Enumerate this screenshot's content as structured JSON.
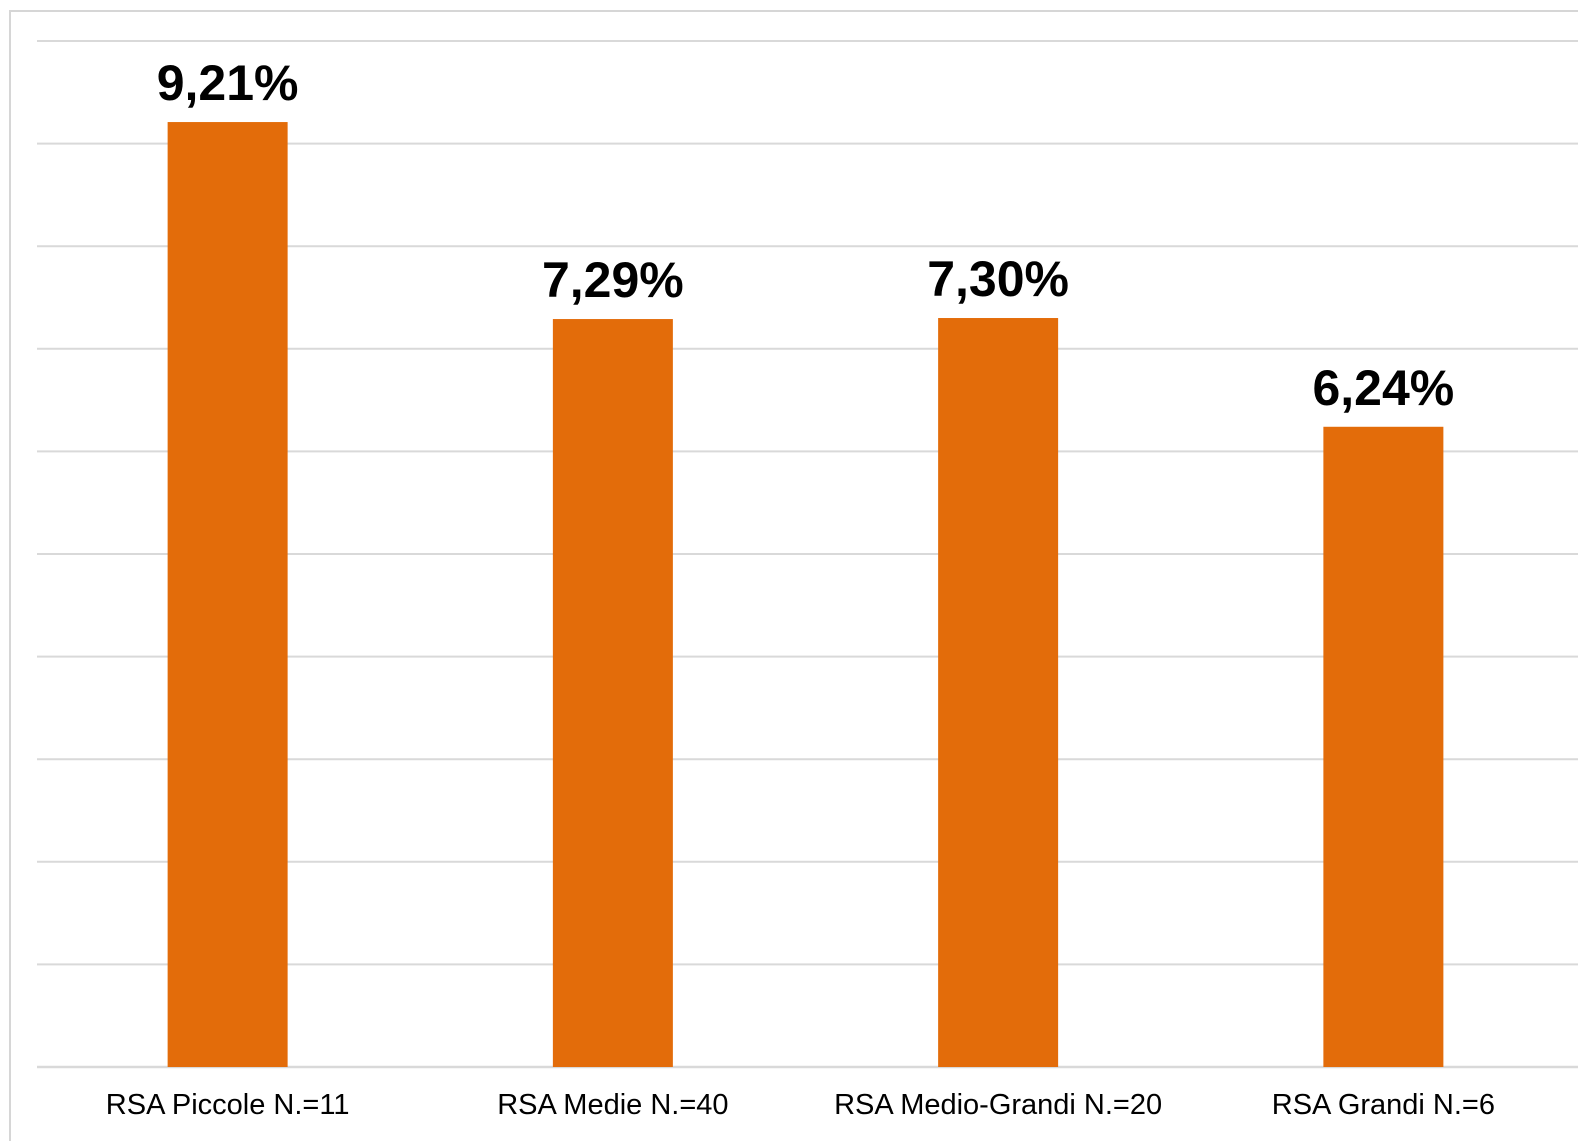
{
  "chart_data": {
    "type": "bar",
    "title": "",
    "xlabel": "",
    "ylabel": "",
    "categories": [
      "RSA Piccole N.=11",
      "RSA Medie N.=40",
      "RSA Medio-Grandi N.=20",
      "RSA Grandi N.=6"
    ],
    "values": [
      9.21,
      7.29,
      7.3,
      6.24
    ],
    "value_labels": [
      "9,21%",
      "7,29%",
      "7,30%",
      "6,24%"
    ],
    "ylim": [
      0,
      10
    ],
    "gridlines": true,
    "y_ticks_visible": false,
    "legend": "none",
    "bar_color": "#E36C0A",
    "grid_color": "#D9D9D9"
  }
}
